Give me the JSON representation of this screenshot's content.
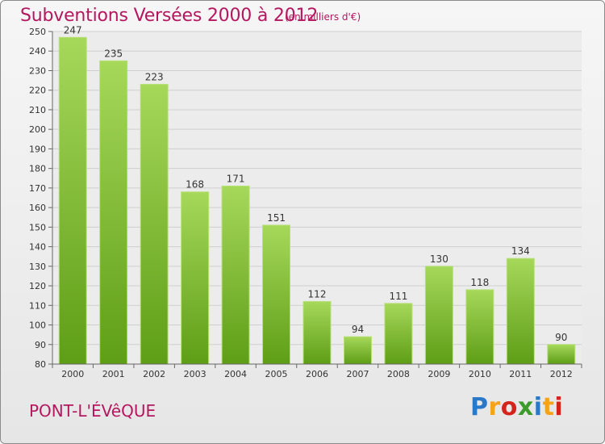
{
  "header": {
    "title": "Subventions Versées 2000 à 2012",
    "subtitle": "(en milliers d'€)"
  },
  "footer": {
    "city": "PONT-L'ÉVêQUE",
    "logo_letters": [
      "P",
      "r",
      "o",
      "x",
      "i",
      "t",
      "i"
    ]
  },
  "colors": {
    "title": "#b5175f",
    "bar_top": "#a6d85a",
    "bar_bottom": "#5e9e16",
    "logo": [
      "#2a78c8",
      "#f5a31a",
      "#d4241c",
      "#3d9b2c",
      "#2a78c8",
      "#f5a31a",
      "#d4241c"
    ]
  },
  "chart_data": {
    "type": "bar",
    "title": "Subventions Versées 2000 à 2012",
    "subtitle": "(en milliers d'€)",
    "categories": [
      "2000",
      "2001",
      "2002",
      "2003",
      "2004",
      "2005",
      "2006",
      "2007",
      "2008",
      "2009",
      "2010",
      "2011",
      "2012"
    ],
    "values": [
      247,
      235,
      223,
      168,
      171,
      151,
      112,
      94,
      111,
      130,
      118,
      134,
      90
    ],
    "value_labels": [
      "247",
      "235",
      "223",
      "168",
      "171",
      "151",
      "112",
      "94",
      "111",
      "130",
      "118",
      "134",
      "90"
    ],
    "ylim": [
      80,
      250
    ],
    "yticks": [
      80,
      90,
      100,
      110,
      120,
      130,
      140,
      150,
      160,
      170,
      180,
      190,
      200,
      210,
      220,
      230,
      240,
      250
    ],
    "grid": true
  }
}
